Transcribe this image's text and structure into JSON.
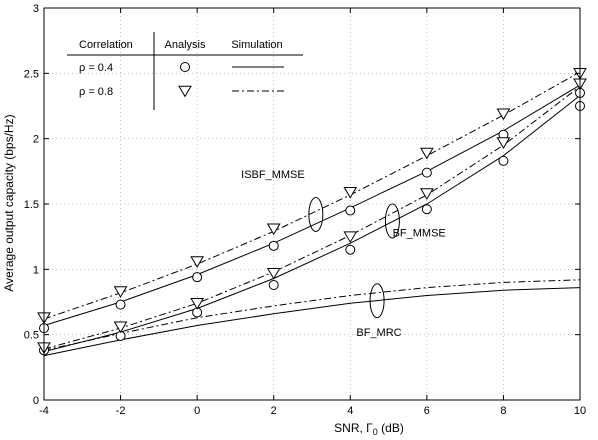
{
  "chart_data": {
    "type": "line",
    "xlabel": "SNR, Γ",
    "xlabel_sub": "0",
    "xlabel_unit": " (dB)",
    "ylabel": "Average output capacity (bps/Hz)",
    "xlim": [
      -4,
      10
    ],
    "ylim": [
      0,
      3
    ],
    "xticks": [
      -4,
      -2,
      0,
      2,
      4,
      6,
      8,
      10
    ],
    "yticks": [
      0,
      0.5,
      1,
      1.5,
      2,
      2.5,
      3
    ],
    "grid": true,
    "legend": {
      "position": "top-left",
      "headers": [
        "Correlation",
        "Analysis",
        "Simulation"
      ],
      "rows": [
        {
          "label": "ρ = 0.4",
          "marker": "circle",
          "line": "solid"
        },
        {
          "label": "ρ = 0.8",
          "marker": "triangle-down",
          "line": "dashdot"
        }
      ]
    },
    "annotations": [
      {
        "text": "ISBF_MMSE",
        "x": 3.1,
        "y": 1.42
      },
      {
        "text": "BF_MMSE",
        "x": 5.1,
        "y": 1.37
      },
      {
        "text": "BF_MRC",
        "x": 4.7,
        "y": 0.76
      }
    ],
    "x": [
      -4,
      -2,
      0,
      2,
      4,
      6,
      8,
      10
    ],
    "series": [
      {
        "group": "ISBF_MMSE",
        "correlation": "0.4",
        "kind": "simulation",
        "style": "solid",
        "values": [
          0.57,
          0.75,
          0.96,
          1.2,
          1.47,
          1.75,
          2.06,
          2.41
        ]
      },
      {
        "group": "ISBF_MMSE",
        "correlation": "0.8",
        "kind": "simulation",
        "style": "dashdot",
        "values": [
          0.62,
          0.82,
          1.04,
          1.29,
          1.57,
          1.87,
          2.18,
          2.51
        ]
      },
      {
        "group": "BF_MMSE",
        "correlation": "0.4",
        "kind": "simulation",
        "style": "solid",
        "values": [
          0.37,
          0.52,
          0.7,
          0.93,
          1.2,
          1.5,
          1.87,
          2.33
        ]
      },
      {
        "group": "BF_MMSE",
        "correlation": "0.8",
        "kind": "simulation",
        "style": "dashdot",
        "values": [
          0.39,
          0.55,
          0.74,
          0.98,
          1.26,
          1.57,
          1.95,
          2.4
        ]
      },
      {
        "group": "BF_MRC",
        "correlation": "0.4",
        "kind": "simulation",
        "style": "solid",
        "values": [
          0.34,
          0.46,
          0.57,
          0.66,
          0.74,
          0.8,
          0.84,
          0.86
        ]
      },
      {
        "group": "BF_MRC",
        "correlation": "0.8",
        "kind": "simulation",
        "style": "dashdot",
        "values": [
          0.38,
          0.51,
          0.63,
          0.72,
          0.8,
          0.86,
          0.9,
          0.92
        ]
      },
      {
        "group": "ISBF_MMSE",
        "correlation": "0.4",
        "kind": "analysis",
        "marker": "circle",
        "values": [
          0.55,
          0.73,
          0.94,
          1.18,
          1.45,
          1.74,
          2.03,
          2.35
        ]
      },
      {
        "group": "BF_MMSE",
        "correlation": "0.4",
        "kind": "analysis",
        "marker": "circle",
        "values": [
          0.38,
          0.49,
          0.67,
          0.88,
          1.15,
          1.46,
          1.83,
          2.25
        ]
      },
      {
        "group": "ISBF_MMSE",
        "correlation": "0.8",
        "kind": "analysis",
        "marker": "triangle-down",
        "values": [
          0.63,
          0.83,
          1.06,
          1.31,
          1.59,
          1.89,
          2.19,
          2.5
        ]
      },
      {
        "group": "BF_MMSE",
        "correlation": "0.8",
        "kind": "analysis",
        "marker": "triangle-down",
        "values": [
          0.4,
          0.56,
          0.74,
          0.97,
          1.25,
          1.58,
          1.97,
          2.42
        ]
      }
    ]
  }
}
